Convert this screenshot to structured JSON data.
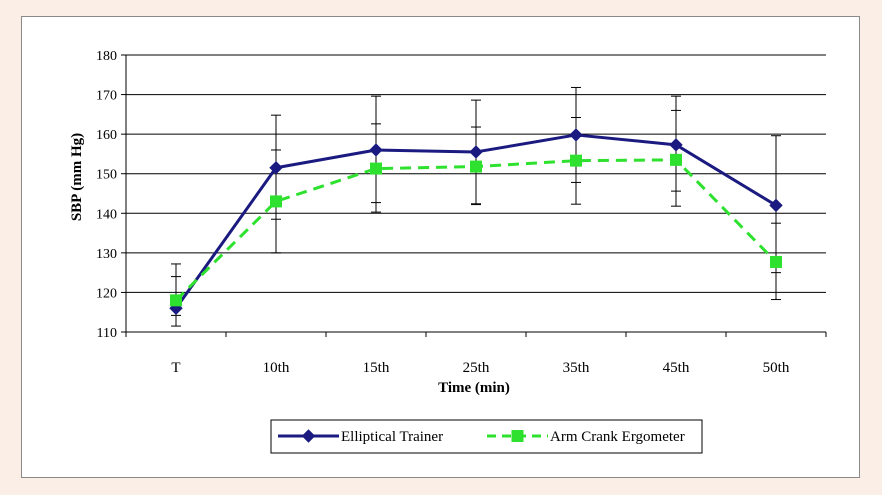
{
  "chart_data": {
    "type": "line",
    "title": "",
    "xlabel": "Time (min)",
    "ylabel": "SBP (mm Hg)",
    "categories": [
      "T",
      "10th",
      "15th",
      "25th",
      "35th",
      "45th",
      "50th"
    ],
    "ylim": [
      110,
      180
    ],
    "yticks": [
      110,
      120,
      130,
      140,
      150,
      160,
      170,
      180
    ],
    "grid": "horizontal",
    "legend": "bottom",
    "series": [
      {
        "name": "Elliptical Trainer",
        "color": "#1a1a80",
        "marker": "diamond",
        "linestyle": "solid",
        "values": [
          116,
          151.5,
          156,
          155.5,
          159.8,
          157.3,
          142
        ],
        "error_upper": [
          124,
          164.8,
          169.6,
          168.6,
          171.8,
          169.6,
          159.6
        ],
        "error_lower": [
          111.5,
          138.5,
          142.7,
          142.4,
          147.8,
          145.6,
          125
        ]
      },
      {
        "name": "Arm Crank Ergometer",
        "color": "#2ee12e",
        "marker": "square",
        "linestyle": "dashed",
        "values": [
          118,
          143,
          151.3,
          151.8,
          153.3,
          153.5,
          127.7
        ],
        "error_upper": [
          127.2,
          156,
          162.6,
          161.8,
          164.2,
          166,
          137.5
        ],
        "error_lower": [
          114.2,
          130,
          140.3,
          142.2,
          142.3,
          141.8,
          118.2
        ]
      }
    ]
  }
}
